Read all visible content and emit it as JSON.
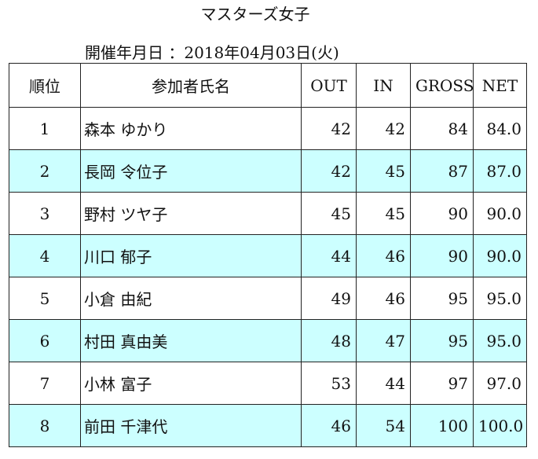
{
  "title": "マスターズ女子",
  "date_label": "開催年月日",
  "date_separator": "：",
  "date_value": "2018年04月03日(火)",
  "table": {
    "headers": {
      "rank": "順位",
      "name": "参加者氏名",
      "out": "OUT",
      "in": "IN",
      "gross": "GROSS",
      "net": "NET"
    },
    "rows": [
      {
        "rank": "1",
        "name": "森本 ゆかり",
        "out": "42",
        "in": "42",
        "gross": "84",
        "net": "84.0"
      },
      {
        "rank": "2",
        "name": "長岡 令位子",
        "out": "42",
        "in": "45",
        "gross": "87",
        "net": "87.0"
      },
      {
        "rank": "3",
        "name": "野村 ツヤ子",
        "out": "45",
        "in": "45",
        "gross": "90",
        "net": "90.0"
      },
      {
        "rank": "4",
        "name": "川口 郁子",
        "out": "44",
        "in": "46",
        "gross": "90",
        "net": "90.0"
      },
      {
        "rank": "5",
        "name": "小倉 由紀",
        "out": "49",
        "in": "46",
        "gross": "95",
        "net": "95.0"
      },
      {
        "rank": "6",
        "name": "村田 真由美",
        "out": "48",
        "in": "47",
        "gross": "95",
        "net": "95.0"
      },
      {
        "rank": "7",
        "name": "小林 富子",
        "out": "53",
        "in": "44",
        "gross": "97",
        "net": "97.0"
      },
      {
        "rank": "8",
        "name": "前田 千津代",
        "out": "46",
        "in": "54",
        "gross": "100",
        "net": "100.0"
      }
    ]
  },
  "colors": {
    "alt_row_background": "#ccffff",
    "border": "#222222",
    "text": "#111111"
  }
}
